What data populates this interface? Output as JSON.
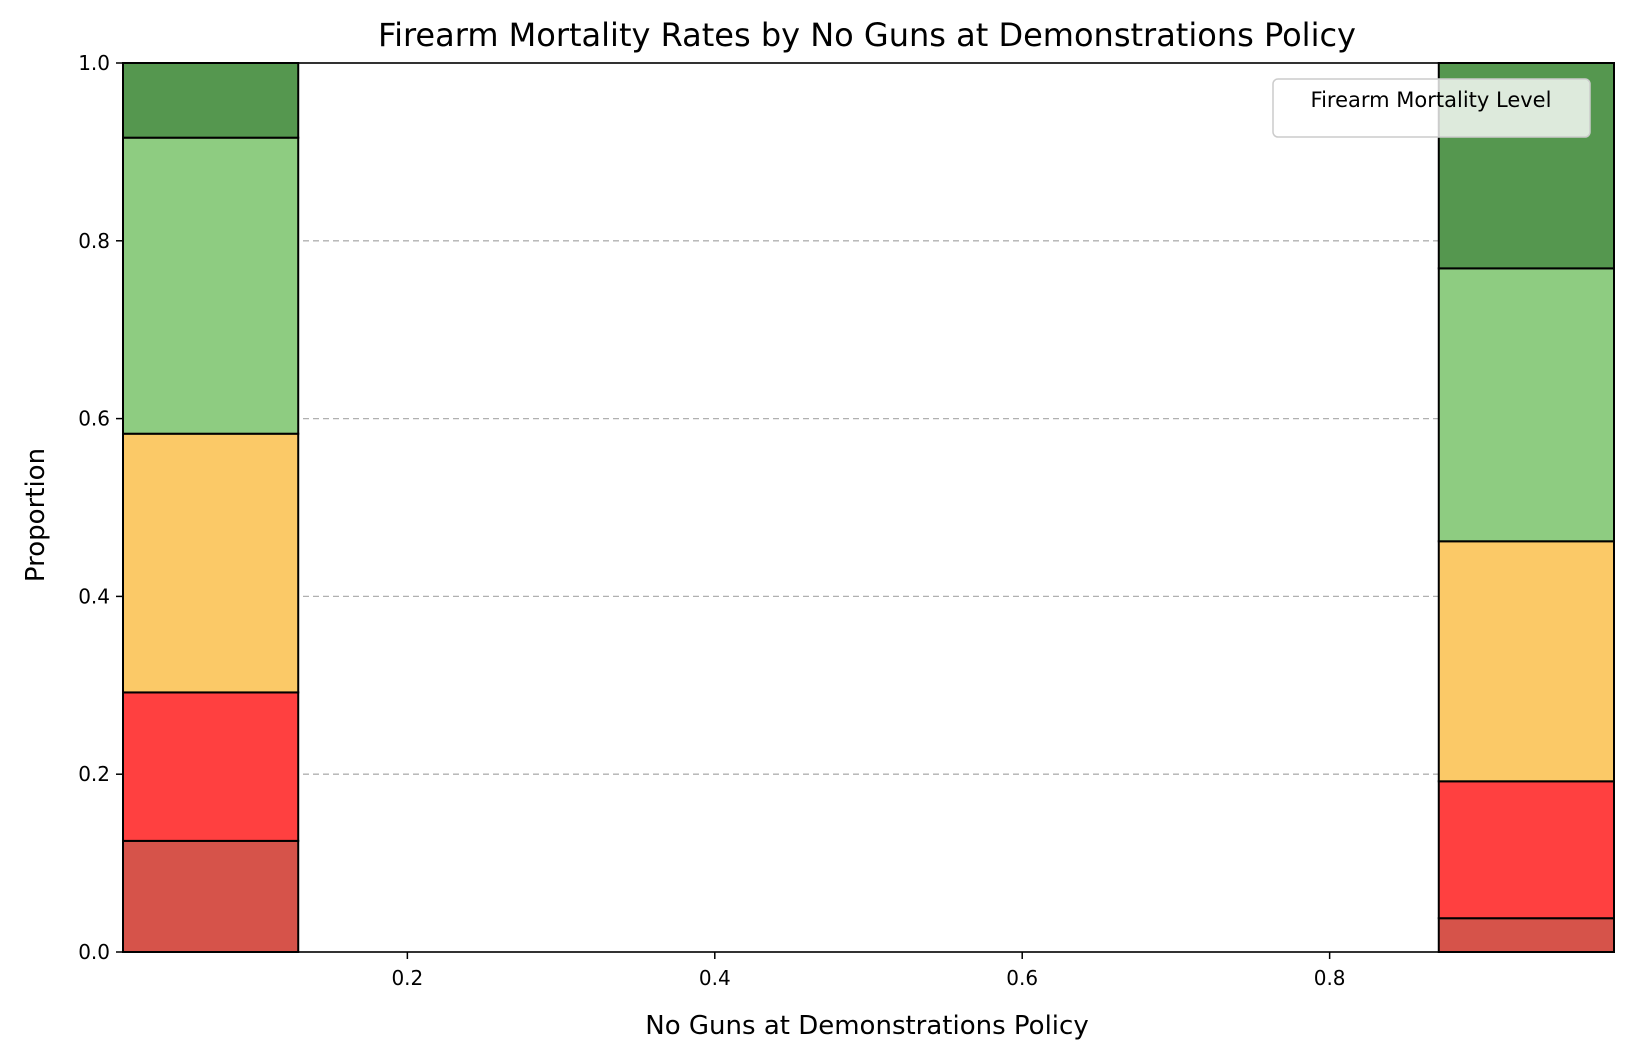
{
  "chart_data": {
    "type": "bar",
    "title": "Firearm Mortality Rates by No Guns at Demonstrations Policy",
    "xlabel": "No Guns at Demonstrations Policy",
    "ylabel": "Proportion",
    "xlim": [
      0.015,
      0.985
    ],
    "ylim": [
      0,
      1
    ],
    "x_ticks": [
      0.2,
      0.4,
      0.6,
      0.8
    ],
    "y_ticks": [
      0.0,
      0.2,
      0.4,
      0.6,
      0.8,
      1.0
    ],
    "grid": {
      "axis": "y",
      "style": "dashed"
    },
    "stacked": true,
    "normalized": true,
    "bins": [
      {
        "x_start": 0.015,
        "x_end": 0.129
      },
      {
        "x_start": 0.871,
        "x_end": 0.985
      }
    ],
    "series": [
      {
        "color": "#d6534a",
        "values": [
          0.125,
          0.038
        ]
      },
      {
        "color": "#ff4040",
        "values": [
          0.167,
          0.154
        ]
      },
      {
        "color": "#fbc967",
        "values": [
          0.291,
          0.27
        ]
      },
      {
        "color": "#8ecc81",
        "values": [
          0.333,
          0.307
        ]
      },
      {
        "color": "#55974f",
        "values": [
          0.084,
          0.231
        ]
      }
    ],
    "legend": {
      "title": "Firearm Mortality Level",
      "position": "top-right",
      "entries": []
    }
  }
}
